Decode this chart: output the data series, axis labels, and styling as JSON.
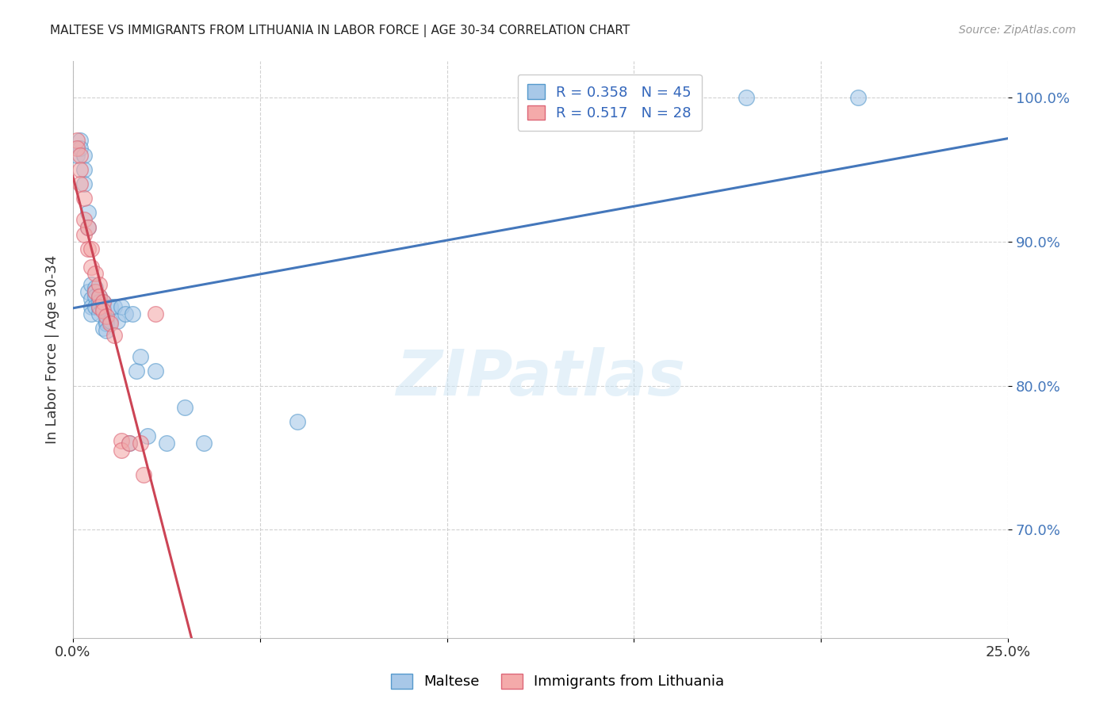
{
  "title": "MALTESE VS IMMIGRANTS FROM LITHUANIA IN LABOR FORCE | AGE 30-34 CORRELATION CHART",
  "source": "Source: ZipAtlas.com",
  "ylabel": "In Labor Force | Age 30-34",
  "xlim": [
    0.0,
    0.25
  ],
  "ylim": [
    0.625,
    1.025
  ],
  "yticks": [
    0.7,
    0.8,
    0.9,
    1.0
  ],
  "ytick_labels": [
    "70.0%",
    "80.0%",
    "90.0%",
    "100.0%"
  ],
  "xticks": [
    0.0,
    0.05,
    0.1,
    0.15,
    0.2,
    0.25
  ],
  "xtick_labels": [
    "0.0%",
    "",
    "",
    "",
    "",
    "25.0%"
  ],
  "blue_R": 0.358,
  "blue_N": 45,
  "pink_R": 0.517,
  "pink_N": 28,
  "blue_color": "#a8c8e8",
  "pink_color": "#f4aaaa",
  "blue_edge_color": "#5599cc",
  "pink_edge_color": "#dd6677",
  "blue_line_color": "#4477bb",
  "pink_line_color": "#cc4455",
  "watermark": "ZIPatlas",
  "blue_scatter_x": [
    0.001,
    0.002,
    0.002,
    0.003,
    0.003,
    0.003,
    0.004,
    0.004,
    0.004,
    0.005,
    0.005,
    0.005,
    0.005,
    0.006,
    0.006,
    0.006,
    0.006,
    0.007,
    0.007,
    0.007,
    0.007,
    0.008,
    0.008,
    0.008,
    0.009,
    0.009,
    0.009,
    0.01,
    0.01,
    0.011,
    0.012,
    0.013,
    0.014,
    0.015,
    0.016,
    0.017,
    0.018,
    0.02,
    0.022,
    0.025,
    0.03,
    0.035,
    0.06,
    0.18,
    0.21
  ],
  "blue_scatter_y": [
    0.96,
    0.97,
    0.965,
    0.96,
    0.95,
    0.94,
    0.92,
    0.91,
    0.865,
    0.87,
    0.86,
    0.855,
    0.85,
    0.868,
    0.865,
    0.862,
    0.855,
    0.862,
    0.858,
    0.854,
    0.85,
    0.858,
    0.854,
    0.84,
    0.845,
    0.843,
    0.838,
    0.855,
    0.845,
    0.855,
    0.845,
    0.855,
    0.85,
    0.76,
    0.85,
    0.81,
    0.82,
    0.765,
    0.81,
    0.76,
    0.785,
    0.76,
    0.775,
    1.0,
    1.0
  ],
  "pink_scatter_x": [
    0.001,
    0.001,
    0.002,
    0.002,
    0.002,
    0.003,
    0.003,
    0.003,
    0.004,
    0.004,
    0.005,
    0.005,
    0.006,
    0.006,
    0.007,
    0.007,
    0.007,
    0.008,
    0.008,
    0.009,
    0.01,
    0.011,
    0.013,
    0.013,
    0.015,
    0.018,
    0.019,
    0.022
  ],
  "pink_scatter_y": [
    0.97,
    0.965,
    0.96,
    0.95,
    0.94,
    0.93,
    0.915,
    0.905,
    0.91,
    0.895,
    0.895,
    0.882,
    0.878,
    0.865,
    0.87,
    0.862,
    0.855,
    0.858,
    0.852,
    0.848,
    0.843,
    0.835,
    0.762,
    0.755,
    0.76,
    0.76,
    0.738,
    0.85
  ],
  "legend_blue_label": "Maltese",
  "legend_pink_label": "Immigrants from Lithuania"
}
